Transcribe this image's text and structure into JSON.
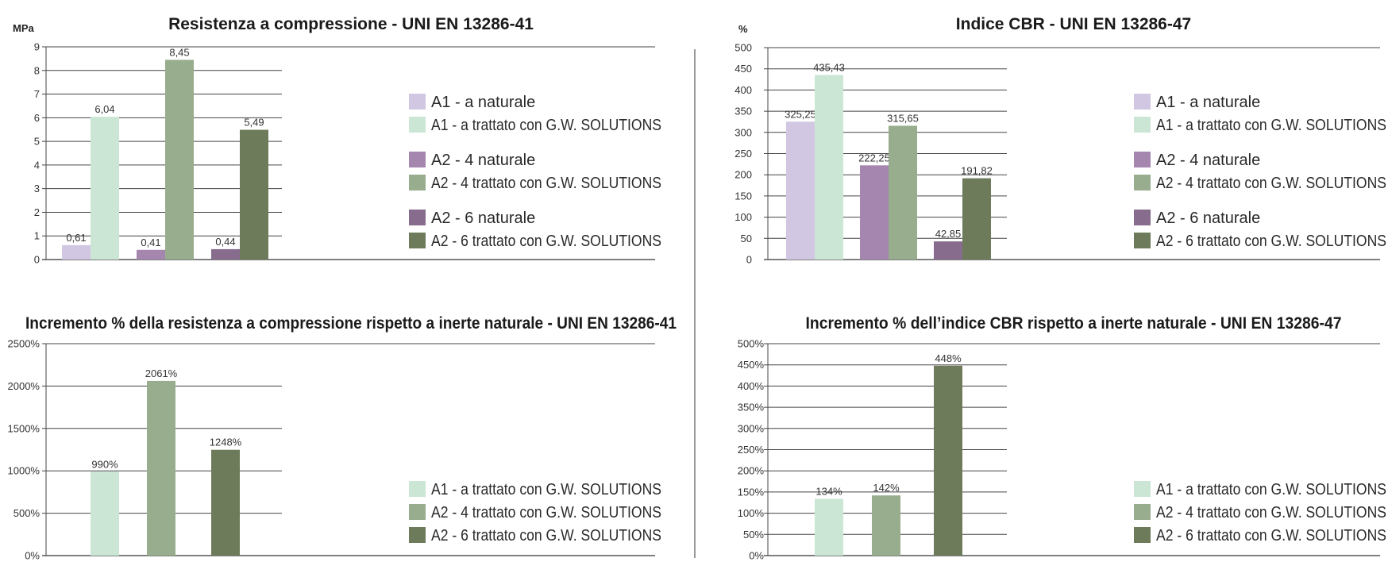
{
  "colors": {
    "A1_nat": "#d2c7e2",
    "A1_tr": "#cbe6d5",
    "A2_4_nat": "#a586ae",
    "A2_4_tr": "#98ad8d",
    "A2_6_nat": "#876c8e",
    "A2_6_tr": "#6d7b5a"
  },
  "chart_data": [
    {
      "type": "bar",
      "title": "Resistenza a compressione - UNI EN 13286-41",
      "ylabel": "MPa",
      "ylim": [
        0,
        9
      ],
      "yticks": [
        "0",
        "1",
        "2",
        "3",
        "4",
        "5",
        "6",
        "7",
        "8",
        "9"
      ],
      "series": [
        {
          "name": "A1 - a naturale",
          "value": 0.61,
          "label": "0,61",
          "color": "A1_nat"
        },
        {
          "name": "A1 - a trattato con G.W. SOLUTIONS",
          "value": 6.04,
          "label": "6,04",
          "color": "A1_tr"
        },
        {
          "name": "A2 - 4 naturale",
          "value": 0.41,
          "label": "0,41",
          "color": "A2_4_nat"
        },
        {
          "name": "A2 - 4 trattato con G.W. SOLUTIONS",
          "value": 8.45,
          "label": "8,45",
          "color": "A2_4_tr"
        },
        {
          "name": "A2 - 6 naturale",
          "value": 0.44,
          "label": "0,44",
          "color": "A2_6_nat"
        },
        {
          "name": "A2 - 6 trattato con G.W. SOLUTIONS",
          "value": 5.49,
          "label": "5,49",
          "color": "A2_6_tr"
        }
      ],
      "legend": "right"
    },
    {
      "type": "bar",
      "title": "Indice CBR - UNI EN 13286-47",
      "ylabel": "%",
      "ylim": [
        0,
        500
      ],
      "yticks": [
        "0",
        "50",
        "100",
        "150",
        "200",
        "250",
        "300",
        "350",
        "400",
        "450",
        "500"
      ],
      "series": [
        {
          "name": "A1 - a naturale",
          "value": 325.25,
          "label": "325,25",
          "color": "A1_nat"
        },
        {
          "name": "A1 - a trattato con G.W. SOLUTIONS",
          "value": 435.43,
          "label": "435,43",
          "color": "A1_tr"
        },
        {
          "name": "A2 - 4 naturale",
          "value": 222.25,
          "label": "222,25",
          "color": "A2_4_nat"
        },
        {
          "name": "A2 - 4 trattato con G.W. SOLUTIONS",
          "value": 315.65,
          "label": "315,65",
          "color": "A2_4_tr"
        },
        {
          "name": "A2 - 6 naturale",
          "value": 42.85,
          "label": "42,85",
          "color": "A2_6_nat"
        },
        {
          "name": "A2 - 6 trattato con G.W. SOLUTIONS",
          "value": 191.82,
          "label": "191,82",
          "color": "A2_6_tr"
        }
      ],
      "legend": "right"
    },
    {
      "type": "bar",
      "title": "Incremento % della resistenza a compressione rispetto a inerte naturale - UNI EN 13286-41",
      "ylabel": "",
      "ylim": [
        0,
        2500
      ],
      "yticks": [
        "0%",
        "500%",
        "1000%",
        "1500%",
        "2000%",
        "2500%"
      ],
      "series": [
        {
          "name": "A1 - a trattato con G.W. SOLUTIONS",
          "value": 990,
          "label": "990%",
          "color": "A1_tr"
        },
        {
          "name": "A2 - 4 trattato con G.W. SOLUTIONS",
          "value": 2061,
          "label": "2061%",
          "color": "A2_4_tr"
        },
        {
          "name": "A2 - 6 trattato con G.W. SOLUTIONS",
          "value": 1248,
          "label": "1248%",
          "color": "A2_6_tr"
        }
      ],
      "legend": "bottom-right"
    },
    {
      "type": "bar",
      "title": "Incremento % dell’indice CBR rispetto a inerte naturale - UNI EN 13286-47",
      "ylabel": "",
      "ylim": [
        0,
        500
      ],
      "yticks": [
        "0%",
        "50%",
        "100%",
        "150%",
        "200%",
        "250%",
        "300%",
        "350%",
        "400%",
        "450%",
        "500%"
      ],
      "series": [
        {
          "name": "A1 - a trattato con G.W. SOLUTIONS",
          "value": 134,
          "label": "134%",
          "color": "A1_tr"
        },
        {
          "name": "A2 - 4 trattato con G.W. SOLUTIONS",
          "value": 142,
          "label": "142%",
          "color": "A2_4_tr"
        },
        {
          "name": "A2 - 6 trattato con G.W. SOLUTIONS",
          "value": 448,
          "label": "448%",
          "color": "A2_6_tr"
        }
      ],
      "legend": "bottom-right"
    }
  ]
}
